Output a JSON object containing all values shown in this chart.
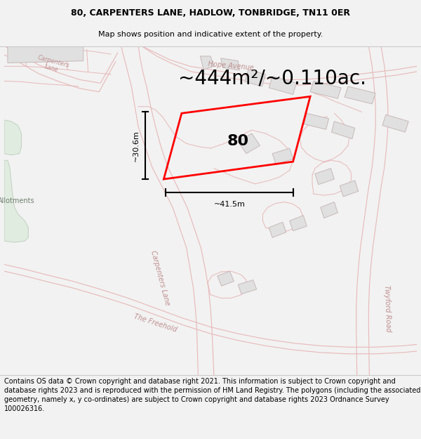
{
  "title_line1": "80, CARPENTERS LANE, HADLOW, TONBRIDGE, TN11 0ER",
  "title_line2": "Map shows position and indicative extent of the property.",
  "area_text": "~444m²/~0.110ac.",
  "number_label": "80",
  "dim_vertical": "~30.6m",
  "dim_horizontal": "~41.5m",
  "footer_text": "Contains OS data © Crown copyright and database right 2021. This information is subject to Crown copyright and database rights 2023 and is reproduced with the permission of HM Land Registry. The polygons (including the associated geometry, namely x, y co-ordinates) are subject to Crown copyright and database rights 2023 Ordnance Survey 100026316.",
  "bg_color": "#f2f2f2",
  "map_bg": "#ffffff",
  "road_outline_color": "#e8b8b8",
  "plot_color": "#ff0000",
  "building_fill": "#e0e0e0",
  "building_edge": "#c8b8b8",
  "green_area": "#e0ece0",
  "green_edge": "#c0d0c0",
  "title_fontsize": 9,
  "subtitle_fontsize": 8,
  "area_fontsize": 20,
  "footer_fontsize": 7,
  "road_label_color": "#c09090",
  "road_label_fontsize": 7
}
